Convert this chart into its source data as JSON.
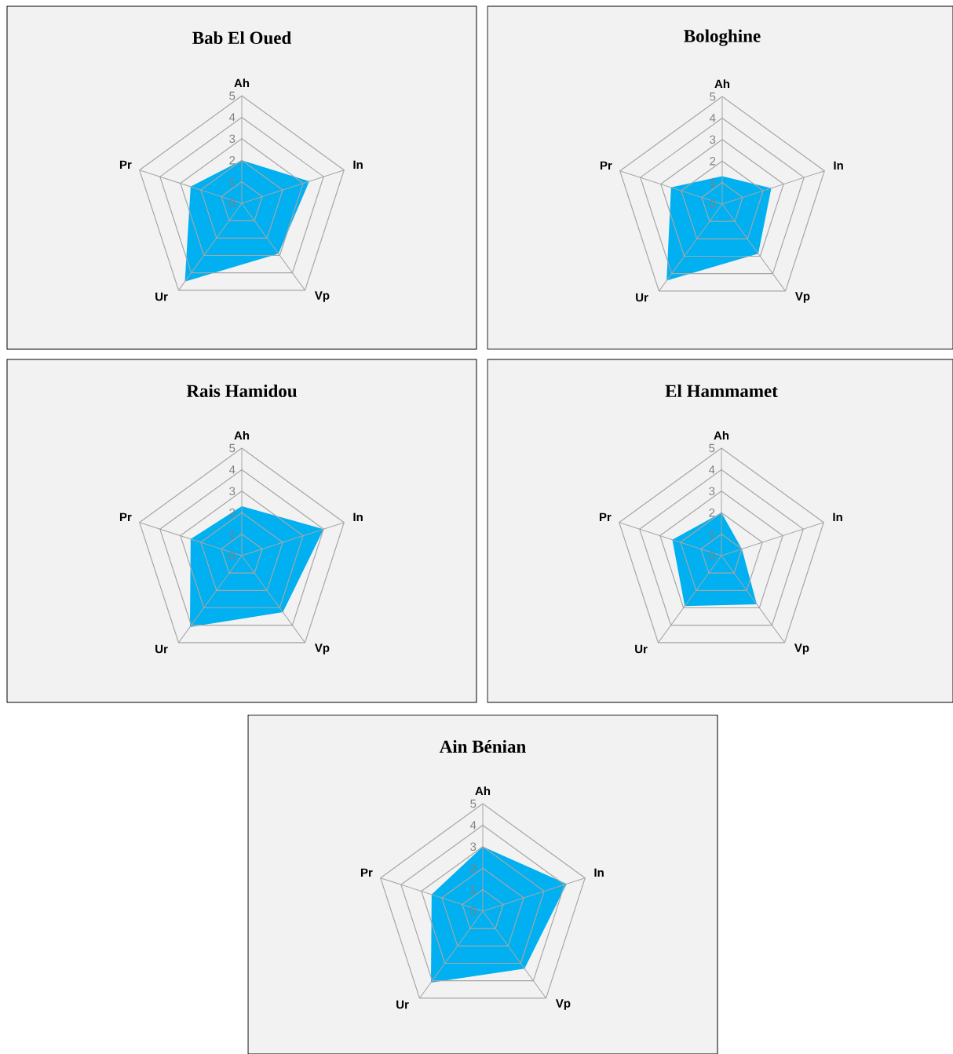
{
  "chart_data": [
    {
      "type": "radar",
      "title": "Bab El Oued",
      "categories": [
        "Ah",
        "In",
        "Vp",
        "Ur",
        "Pr"
      ],
      "ylim": [
        0,
        5
      ],
      "yticks": [
        0,
        1,
        2,
        3,
        4,
        5
      ],
      "grid": true,
      "series": [
        {
          "color": "#00b0f0",
          "values": [
            2.0,
            3.3,
            2.9,
            4.5,
            2.5
          ]
        }
      ]
    },
    {
      "type": "radar",
      "title": "Bologhine",
      "categories": [
        "Ah",
        "In",
        "Vp",
        "Ur",
        "Pr"
      ],
      "ylim": [
        0,
        5
      ],
      "yticks": [
        0,
        1,
        2,
        3,
        4,
        5
      ],
      "grid": true,
      "series": [
        {
          "color": "#00b0f0",
          "values": [
            1.3,
            2.4,
            2.85,
            4.4,
            2.5
          ]
        }
      ]
    },
    {
      "type": "radar",
      "title": "Rais Hamidou",
      "categories": [
        "Ah",
        "In",
        "Vp",
        "Ur",
        "Pr"
      ],
      "ylim": [
        0,
        5
      ],
      "yticks": [
        0,
        1,
        2,
        3,
        4,
        5
      ],
      "grid": true,
      "series": [
        {
          "color": "#00b0f0",
          "values": [
            2.3,
            4.0,
            3.25,
            4.1,
            2.5
          ]
        }
      ]
    },
    {
      "type": "radar",
      "title": "El Hammamet",
      "categories": [
        "Ah",
        "In",
        "Vp",
        "Ur",
        "Pr"
      ],
      "ylim": [
        0,
        5
      ],
      "yticks": [
        0,
        1,
        2,
        3,
        4,
        5
      ],
      "grid": true,
      "series": [
        {
          "color": "#00b0f0",
          "values": [
            2.0,
            1.0,
            2.8,
            2.9,
            2.4
          ]
        }
      ]
    },
    {
      "type": "radar",
      "title": "Ain Bénian",
      "categories": [
        "Ah",
        "In",
        "Vp",
        "Ur",
        "Pr"
      ],
      "ylim": [
        0,
        5
      ],
      "yticks": [
        0,
        1,
        2,
        3,
        4,
        5
      ],
      "grid": true,
      "series": [
        {
          "color": "#00b0f0",
          "values": [
            3.0,
            4.1,
            3.3,
            4.1,
            2.5
          ]
        }
      ]
    }
  ]
}
